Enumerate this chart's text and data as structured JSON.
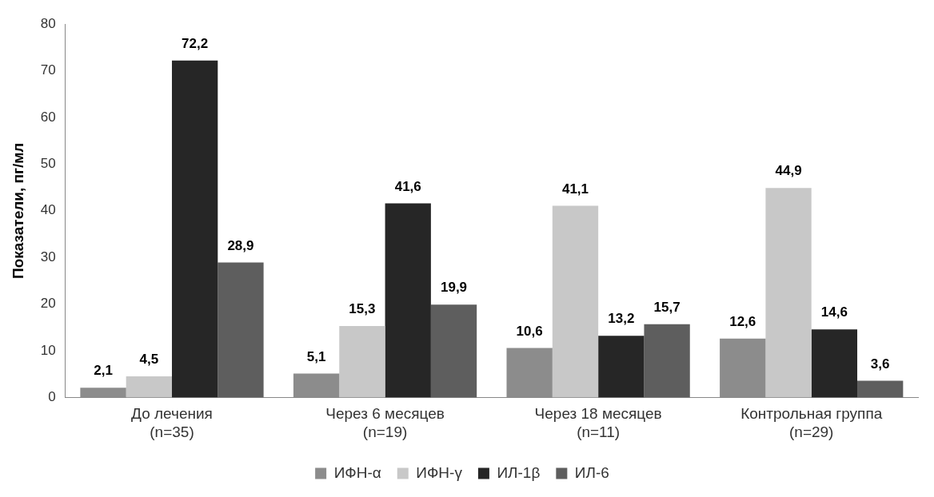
{
  "chart_data": {
    "type": "bar",
    "ylabel": "Показатели, пг/мл",
    "categories": [
      "До лечения\n(n=35)",
      "Через 6 месяцев\n(n=19)",
      "Через 18 месяцев\n(n=11)",
      "Контрольная группа\n(n=29)"
    ],
    "series": [
      {
        "name": "ИФН-α",
        "color": "#8c8c8c",
        "values": [
          2.1,
          5.1,
          10.6,
          12.6
        ],
        "value_labels": [
          "2,1",
          "5,1",
          "10,6",
          "12,6"
        ]
      },
      {
        "name": "ИФН-γ",
        "color": "#c8c8c8",
        "values": [
          4.5,
          15.3,
          41.1,
          44.9
        ],
        "value_labels": [
          "4,5",
          "15,3",
          "41,1",
          "44,9"
        ]
      },
      {
        "name": "ИЛ-1β",
        "color": "#262626",
        "values": [
          72.2,
          41.6,
          13.2,
          14.6
        ],
        "value_labels": [
          "72,2",
          "41,6",
          "13,2",
          "14,6"
        ]
      },
      {
        "name": "ИЛ-6",
        "color": "#5e5e5e",
        "values": [
          28.9,
          19.9,
          15.7,
          3.6
        ],
        "value_labels": [
          "28,9",
          "19,9",
          "15,7",
          "3,6"
        ]
      }
    ],
    "ylim": [
      0,
      80
    ],
    "yticks": [
      0,
      10,
      20,
      30,
      40,
      50,
      60,
      70,
      80
    ],
    "grid": false,
    "legend": "bottom"
  }
}
